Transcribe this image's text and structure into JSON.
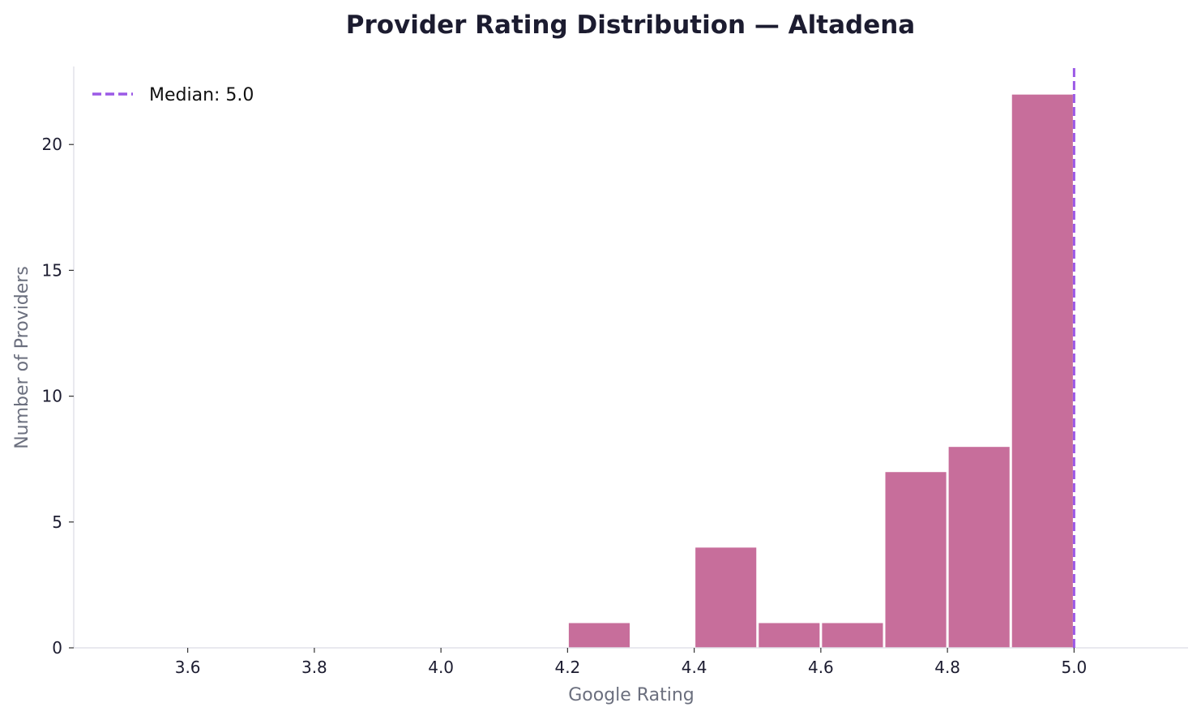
{
  "chart_data": {
    "type": "bar",
    "title": "Provider Rating Distribution — Altadena",
    "xlabel": "Google Rating",
    "ylabel": "Number of Providers",
    "xlim": [
      3.42,
      5.18
    ],
    "ylim": [
      0,
      23.1
    ],
    "xticks": [
      "3.6",
      "3.8",
      "4.0",
      "4.2",
      "4.4",
      "4.6",
      "4.8",
      "5.0"
    ],
    "yticks": [
      "0",
      "5",
      "10",
      "15",
      "20"
    ],
    "bin_width": 0.1,
    "bins": [
      {
        "start": 4.2,
        "end": 4.3,
        "count": 1
      },
      {
        "start": 4.3,
        "end": 4.4,
        "count": 0
      },
      {
        "start": 4.4,
        "end": 4.5,
        "count": 4
      },
      {
        "start": 4.5,
        "end": 4.6,
        "count": 1
      },
      {
        "start": 4.6,
        "end": 4.7,
        "count": 1
      },
      {
        "start": 4.7,
        "end": 4.8,
        "count": 7
      },
      {
        "start": 4.8,
        "end": 4.9,
        "count": 8
      },
      {
        "start": 4.9,
        "end": 5.0,
        "count": 22
      }
    ],
    "median": {
      "value": 5.0,
      "label": "Median: 5.0"
    },
    "legend_placement": "top-left",
    "grid": false,
    "colors": {
      "bar": "#c76e9b",
      "median": "#9b59e6",
      "title": "#1c1c30",
      "axis_label": "#6b6f7e",
      "spine": "#e2e2ea"
    }
  }
}
